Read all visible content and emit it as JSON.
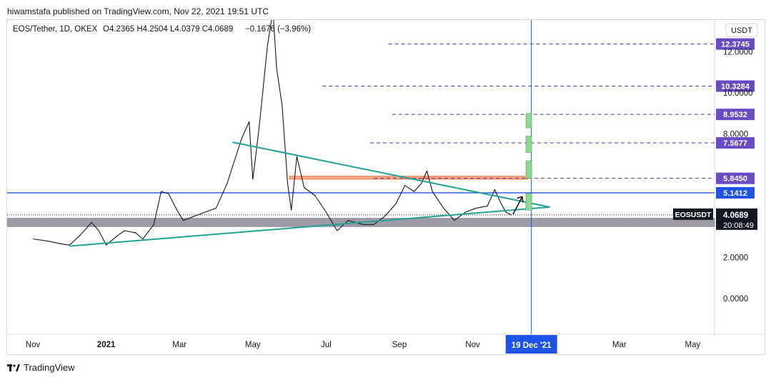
{
  "header": {
    "published": "hiwamstafa published on TradingView.com, Nov 22, 2021 19:51 UTC"
  },
  "legend": {
    "symbol": "EOS/Tether, 1D, OKEX",
    "ohlc": "O4.2365  H4.2504  L4.0379  C4.0689",
    "change": "−0.1676 (−3.96%)"
  },
  "currency_button": "USDT",
  "footer": {
    "brand": "TradingView"
  },
  "colors": {
    "price_line": "#131722",
    "triangle": "#22a294",
    "support_zone": "#8e8a96",
    "blue_level": "#1e53e5",
    "orange_zone": "#f57f52",
    "target_line": "#4a3a9a",
    "target_label": "#6a4bc4",
    "boxes": "#8fd694"
  },
  "chart_data": {
    "type": "line",
    "title": "EOS/Tether, 1D, OKEX",
    "xlabel": "",
    "ylabel": "",
    "ylim": [
      -1.5,
      14.0
    ],
    "x_ticks": [
      "Nov",
      "2021",
      "Mar",
      "May",
      "Jul",
      "Sep",
      "Nov",
      "Mar",
      "May"
    ],
    "x_tick_months": [
      0,
      2,
      4,
      6,
      8,
      10,
      12,
      16,
      18
    ],
    "y_ticks": [
      "0.0000",
      "2.0000",
      "8.0000",
      "10.0000",
      "12.0000"
    ],
    "y_tick_values": [
      0,
      2,
      8,
      10,
      12
    ],
    "series": [
      {
        "type": "line",
        "points": [
          [
            0.0,
            2.9
          ],
          [
            0.4,
            2.8
          ],
          [
            0.8,
            2.65
          ],
          [
            1.0,
            2.6
          ],
          [
            1.3,
            3.1
          ],
          [
            1.6,
            3.7
          ],
          [
            1.8,
            3.3
          ],
          [
            2.0,
            2.6
          ],
          [
            2.3,
            3.05
          ],
          [
            2.5,
            3.3
          ],
          [
            2.8,
            3.2
          ],
          [
            3.0,
            2.9
          ],
          [
            3.3,
            3.6
          ],
          [
            3.5,
            5.2
          ],
          [
            3.7,
            5.1
          ],
          [
            3.9,
            4.4
          ],
          [
            4.1,
            3.8
          ],
          [
            4.4,
            4.0
          ],
          [
            4.7,
            4.2
          ],
          [
            5.0,
            4.4
          ],
          [
            5.3,
            5.6
          ],
          [
            5.5,
            6.7
          ],
          [
            5.7,
            7.8
          ],
          [
            5.9,
            8.6
          ],
          [
            6.0,
            5.8
          ],
          [
            6.1,
            7.2
          ],
          [
            6.2,
            8.8
          ],
          [
            6.4,
            12.3
          ],
          [
            6.55,
            14.0
          ],
          [
            6.65,
            11.2
          ],
          [
            6.8,
            9.4
          ],
          [
            6.95,
            5.6
          ],
          [
            7.05,
            4.3
          ],
          [
            7.2,
            6.9
          ],
          [
            7.4,
            5.4
          ],
          [
            7.7,
            5.0
          ],
          [
            8.0,
            4.2
          ],
          [
            8.3,
            3.3
          ],
          [
            8.6,
            3.8
          ],
          [
            9.0,
            3.6
          ],
          [
            9.3,
            3.6
          ],
          [
            9.6,
            4.0
          ],
          [
            9.9,
            4.6
          ],
          [
            10.15,
            5.5
          ],
          [
            10.4,
            5.2
          ],
          [
            10.6,
            5.6
          ],
          [
            10.75,
            6.2
          ],
          [
            10.9,
            5.2
          ],
          [
            11.2,
            4.4
          ],
          [
            11.5,
            3.8
          ],
          [
            11.8,
            4.2
          ],
          [
            12.1,
            4.4
          ],
          [
            12.4,
            4.5
          ],
          [
            12.6,
            5.3
          ],
          [
            12.75,
            4.7
          ],
          [
            12.9,
            4.2
          ],
          [
            13.05,
            4.07
          ]
        ]
      }
    ],
    "trendlines": [
      {
        "name": "triangle upper",
        "points": [
          [
            5.45,
            7.6
          ],
          [
            14.1,
            4.45
          ]
        ]
      },
      {
        "name": "triangle lower",
        "points": [
          [
            1.0,
            2.55
          ],
          [
            14.1,
            4.45
          ]
        ]
      }
    ],
    "zones": [
      {
        "name": "support",
        "y": [
          3.5,
          3.9
        ],
        "color": "#8e8a96"
      },
      {
        "name": "resistance",
        "x_start": 7.0,
        "x_end": 13.5,
        "y": [
          5.8,
          5.95
        ],
        "color": "#f57f52"
      }
    ],
    "targets": [
      {
        "value": 12.3745,
        "label": "12.3745",
        "x_start": 9.7
      },
      {
        "value": 10.3284,
        "label": "10.3284",
        "x_start": 7.9
      },
      {
        "value": 8.9532,
        "label": "8.9532",
        "x_start": 9.8
      },
      {
        "value": 7.5677,
        "label": "7.5677",
        "x_start": 9.2
      },
      {
        "value": 5.845,
        "label": "5.8450",
        "x_start": 9.3
      }
    ],
    "level": {
      "value": 5.1412,
      "label": "5.1412"
    },
    "last_price": {
      "symbol": "EOSUSDT",
      "value": "4.0689",
      "countdown": "20:08:49",
      "numeric": 4.0689
    },
    "vertical_marker": {
      "month": 13.6,
      "label": "19 Dec '21"
    },
    "projection_boxes": [
      {
        "x": 13.45,
        "y": [
          8.3,
          9.0
        ]
      },
      {
        "x": 13.45,
        "y": [
          7.1,
          7.9
        ]
      },
      {
        "x": 13.45,
        "y": [
          5.85,
          6.7
        ]
      },
      {
        "x": 13.45,
        "y": [
          4.3,
          5.1
        ]
      }
    ]
  }
}
